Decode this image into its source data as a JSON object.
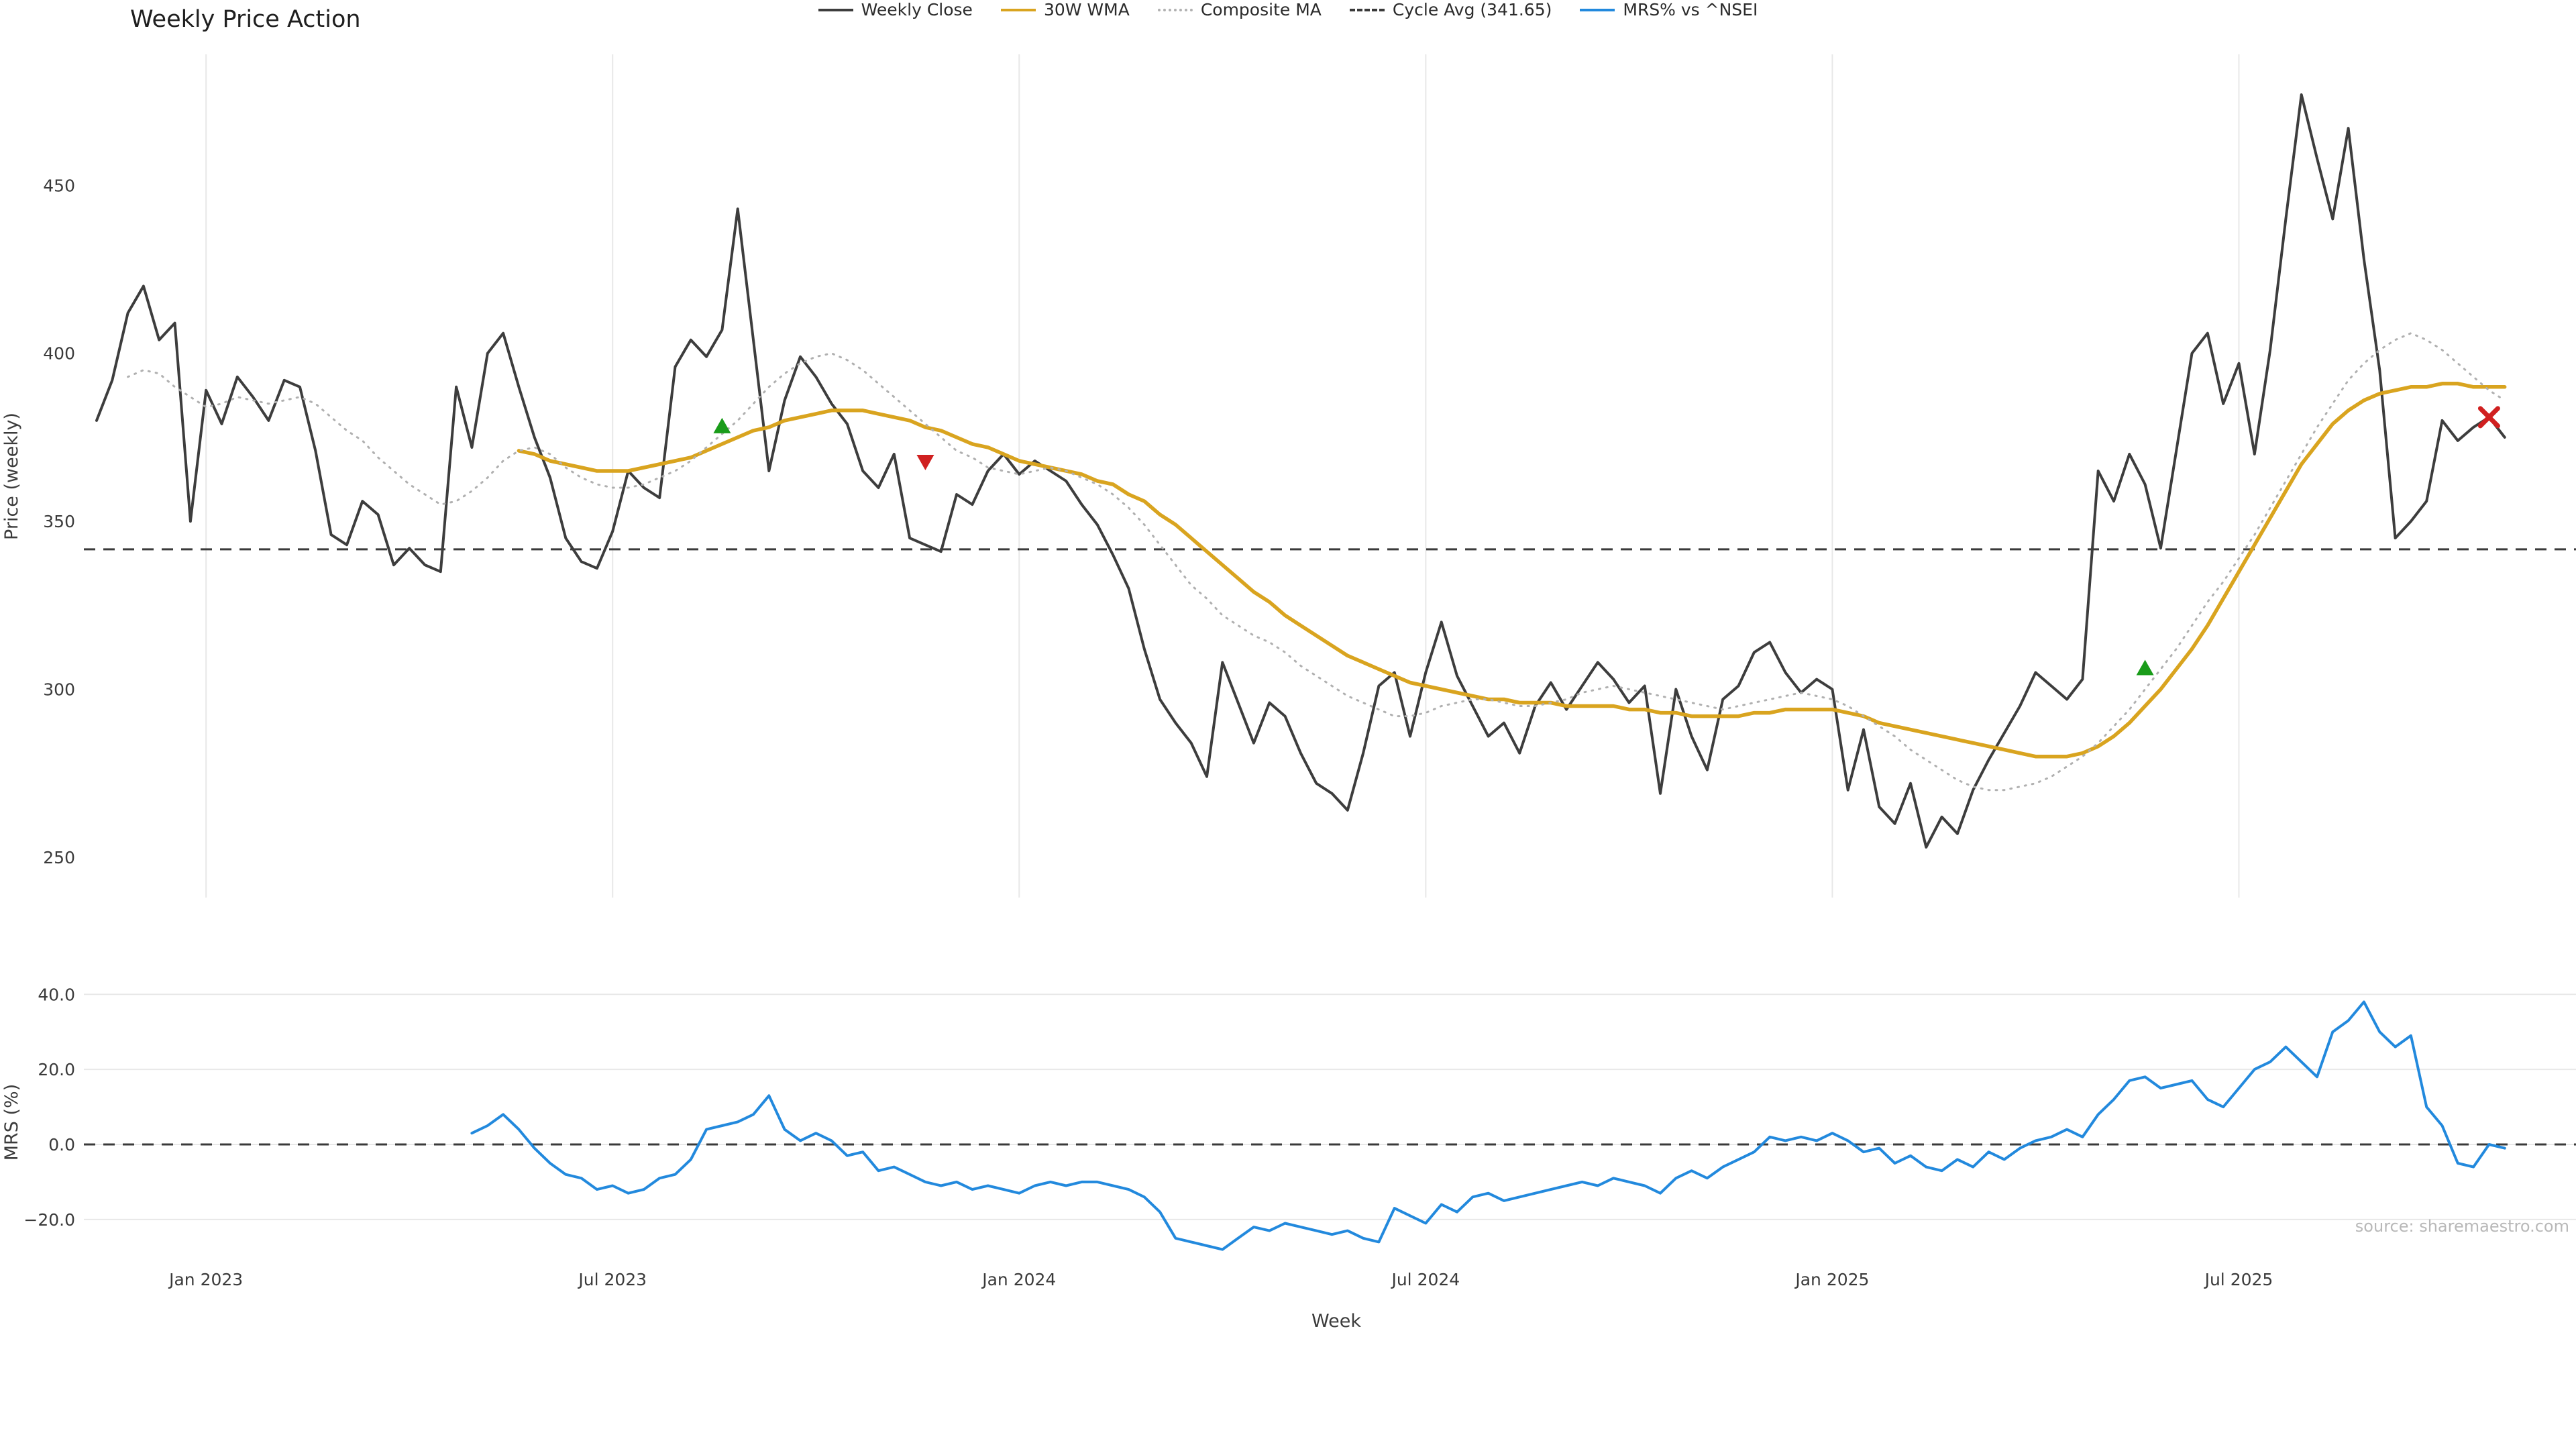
{
  "source_credit": "source: sharemaestro.com",
  "legend": [
    {
      "label": "Weekly Close",
      "color": "#3d3d3d",
      "style": "solid"
    },
    {
      "label": "30W WMA",
      "color": "#d9a41f",
      "style": "solid"
    },
    {
      "label": "Composite MA",
      "color": "#b0b0b0",
      "style": "dotted"
    },
    {
      "label": "Cycle Avg (341.65)",
      "color": "#3a3a3a",
      "style": "dashed"
    },
    {
      "label": "MRS% vs ^NSEI",
      "color": "#2289dd",
      "style": "solid"
    }
  ],
  "chart_data": {
    "type": "line",
    "title": "Weekly Price Action",
    "xlabel": "Week",
    "x_unit": "week_index",
    "weeks_total": 155,
    "x_tick_positions": [
      7,
      33,
      59,
      85,
      111,
      137
    ],
    "x_tick_labels": [
      "Jan 2023",
      "Jul 2023",
      "Jan 2024",
      "Jul 2024",
      "Jan 2025",
      "Jul 2025"
    ],
    "grid": "vertical-lines-top-panel, horizontal-lines-bottom-panel",
    "legend_position": "bottom-center",
    "cycle_avg": 341.65,
    "cycle_avg_label": "Cycle Avg (341.65)",
    "panels": [
      {
        "name": "price",
        "ylabel": "Price (weekly)",
        "ylim": [
          238,
          489
        ],
        "yticks": [
          250,
          300,
          350,
          400,
          450
        ],
        "ytick_labels": [
          "250",
          "300",
          "350",
          "400",
          "450"
        ]
      },
      {
        "name": "mrs",
        "ylabel": "MRS (%)",
        "ylim": [
          -29.5,
          41.3
        ],
        "yticks": [
          40,
          20,
          0,
          -20
        ],
        "ytick_labels": [
          "40.0",
          "20.0",
          "0.0",
          "−20.0"
        ]
      }
    ],
    "series": [
      {
        "name": "Weekly Close",
        "panel": "price",
        "color": "#3d3d3d",
        "style": "solid",
        "values": [
          380,
          392,
          412,
          420,
          404,
          409,
          350,
          389,
          379,
          393,
          387,
          380,
          392,
          390,
          371,
          346,
          343,
          356,
          352,
          337,
          342,
          337,
          335,
          390,
          372,
          400,
          406,
          390,
          375,
          363,
          345,
          338,
          336,
          347,
          365,
          360,
          357,
          396,
          404,
          399,
          407,
          443,
          404,
          365,
          386,
          399,
          393,
          385,
          379,
          365,
          360,
          370,
          345,
          343,
          341,
          358,
          355,
          365,
          370,
          364,
          368,
          365,
          362,
          355,
          349,
          340,
          330,
          312,
          297,
          290,
          284,
          274,
          308,
          296,
          284,
          296,
          292,
          281,
          272,
          269,
          264,
          281,
          301,
          305,
          286,
          305,
          320,
          304,
          295,
          286,
          290,
          281,
          295,
          302,
          294,
          301,
          308,
          303,
          296,
          301,
          269,
          300,
          286,
          276,
          297,
          301,
          311,
          314,
          305,
          299,
          303,
          300,
          270,
          288,
          265,
          260,
          272,
          253,
          262,
          257,
          270,
          279,
          287,
          295,
          305,
          301,
          297,
          303,
          365,
          356,
          370,
          361,
          342,
          371,
          400,
          406,
          385,
          397,
          370,
          401,
          440,
          477,
          458,
          440,
          467,
          428,
          395,
          345,
          350,
          356,
          380,
          374,
          378,
          381,
          375
        ]
      },
      {
        "name": "30W WMA",
        "panel": "price",
        "color": "#d9a41f",
        "style": "solid",
        "values": [
          null,
          null,
          null,
          null,
          null,
          null,
          null,
          null,
          null,
          null,
          null,
          null,
          null,
          null,
          null,
          null,
          null,
          null,
          null,
          null,
          null,
          null,
          null,
          null,
          null,
          null,
          null,
          371,
          370,
          368,
          367,
          366,
          365,
          365,
          365,
          366,
          367,
          368,
          369,
          371,
          373,
          375,
          377,
          378,
          380,
          381,
          382,
          383,
          383,
          383,
          382,
          381,
          380,
          378,
          377,
          375,
          373,
          372,
          370,
          368,
          367,
          366,
          365,
          364,
          362,
          361,
          358,
          356,
          352,
          349,
          345,
          341,
          337,
          333,
          329,
          326,
          322,
          319,
          316,
          313,
          310,
          308,
          306,
          304,
          302,
          301,
          300,
          299,
          298,
          297,
          297,
          296,
          296,
          296,
          295,
          295,
          295,
          295,
          294,
          294,
          293,
          293,
          292,
          292,
          292,
          292,
          293,
          293,
          294,
          294,
          294,
          294,
          293,
          292,
          290,
          289,
          288,
          287,
          286,
          285,
          284,
          283,
          282,
          281,
          280,
          280,
          280,
          281,
          283,
          286,
          290,
          295,
          300,
          306,
          312,
          319,
          327,
          335,
          343,
          351,
          359,
          367,
          373,
          379,
          383,
          386,
          388,
          389,
          390,
          390,
          391,
          391,
          390,
          390,
          390
        ]
      },
      {
        "name": "Composite MA",
        "panel": "price",
        "color": "#b0b0b0",
        "style": "dotted",
        "values": [
          null,
          null,
          393,
          395,
          394,
          390,
          387,
          384,
          385,
          387,
          386,
          385,
          386,
          387,
          385,
          381,
          377,
          374,
          369,
          365,
          361,
          358,
          355,
          356,
          359,
          363,
          368,
          371,
          372,
          370,
          366,
          363,
          361,
          360,
          360,
          361,
          363,
          365,
          368,
          372,
          376,
          380,
          385,
          390,
          394,
          397,
          399,
          400,
          398,
          395,
          391,
          387,
          383,
          379,
          375,
          371,
          369,
          366,
          365,
          364,
          365,
          366,
          365,
          363,
          361,
          358,
          354,
          349,
          343,
          337,
          331,
          327,
          322,
          319,
          316,
          314,
          311,
          307,
          304,
          301,
          298,
          296,
          294,
          292,
          292,
          293,
          295,
          296,
          297,
          297,
          296,
          295,
          295,
          296,
          297,
          299,
          300,
          301,
          300,
          299,
          298,
          297,
          296,
          295,
          294,
          295,
          296,
          297,
          298,
          299,
          298,
          297,
          295,
          292,
          289,
          286,
          282,
          279,
          276,
          273,
          271,
          270,
          270,
          271,
          272,
          274,
          277,
          280,
          284,
          289,
          294,
          300,
          306,
          312,
          319,
          326,
          332,
          339,
          346,
          354,
          362,
          370,
          378,
          385,
          392,
          397,
          401,
          404,
          406,
          404,
          401,
          397,
          393,
          389,
          386
        ]
      },
      {
        "name": "MRS% vs ^NSEI",
        "panel": "mrs",
        "color": "#2289dd",
        "style": "solid",
        "values": [
          null,
          null,
          null,
          null,
          null,
          null,
          null,
          null,
          null,
          null,
          null,
          null,
          null,
          null,
          null,
          null,
          null,
          null,
          null,
          null,
          null,
          null,
          null,
          null,
          3,
          5,
          8,
          4,
          -1,
          -5,
          -8,
          -9,
          -12,
          -11,
          -13,
          -12,
          -9,
          -8,
          -4,
          4,
          5,
          6,
          8,
          13,
          4,
          1,
          3,
          1,
          -3,
          -2,
          -7,
          -6,
          -8,
          -10,
          -11,
          -10,
          -12,
          -11,
          -12,
          -13,
          -11,
          -10,
          -11,
          -10,
          -10,
          -11,
          -12,
          -14,
          -18,
          -25,
          -26,
          -27,
          -28,
          -25,
          -22,
          -23,
          -21,
          -22,
          -23,
          -24,
          -23,
          -25,
          -26,
          -17,
          -19,
          -21,
          -16,
          -18,
          -14,
          -13,
          -15,
          -14,
          -13,
          -12,
          -11,
          -10,
          -11,
          -9,
          -10,
          -11,
          -13,
          -9,
          -7,
          -9,
          -6,
          -4,
          -2,
          2,
          1,
          2,
          1,
          3,
          1,
          -2,
          -1,
          -5,
          -3,
          -6,
          -7,
          -4,
          -6,
          -2,
          -4,
          -1,
          1,
          2,
          4,
          2,
          8,
          12,
          17,
          18,
          15,
          16,
          17,
          12,
          10,
          15,
          20,
          22,
          26,
          22,
          18,
          30,
          33,
          38,
          30,
          26,
          29,
          10,
          5,
          -5,
          -6,
          0,
          -1
        ]
      }
    ],
    "signals": {
      "buy_color": "#1a9c1a",
      "sell_color": "#d02020",
      "buy": [
        {
          "week": 40,
          "price": 378
        },
        {
          "week": 131,
          "price": 306
        }
      ],
      "sell": [
        {
          "week": 53,
          "price": 368,
          "marker": "triangle-down"
        },
        {
          "week": 153,
          "price": 381,
          "marker": "x"
        }
      ]
    }
  }
}
